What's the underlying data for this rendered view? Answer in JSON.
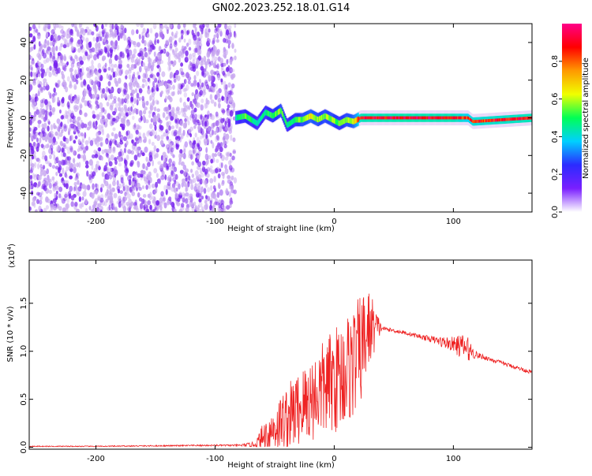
{
  "page": {
    "title": "GN02.2023.252.18.01.G14"
  },
  "colors": {
    "snr_line": "#ee2222",
    "ridge": "#ee1111",
    "noise_purple": "#7722ee",
    "noise_light": "#c8a8f0"
  },
  "chart_data": [
    {
      "type": "heatmap",
      "xlabel": "Height of straight line (km)",
      "ylabel": "Frequency (Hz)",
      "xlim": [
        -256,
        166
      ],
      "ylim": [
        -50,
        50
      ],
      "xticks": [
        -200,
        -100,
        0,
        100
      ],
      "yticks": [
        -40,
        -20,
        0,
        20,
        40
      ],
      "colorbar": {
        "label": "Normalized spectral amplitude",
        "range": [
          0.0,
          1.0
        ],
        "ticks": [
          "0.0",
          "0.2",
          "0.4",
          "0.6",
          "0.8"
        ],
        "tick_values": [
          0.0,
          0.2,
          0.4,
          0.6,
          0.8
        ],
        "colormap": [
          "#ffffff",
          "#7a1fff",
          "#2b2bff",
          "#00d0ff",
          "#00ff55",
          "#f0ff00",
          "#ff9900",
          "#ff0000",
          "#ff0088"
        ]
      },
      "noise_region_x": [
        -256,
        -83
      ],
      "ridge": {
        "x": [
          -83,
          -75,
          -65,
          -58,
          -52,
          -45,
          -40,
          -33,
          -27,
          -20,
          -14,
          -8,
          -2,
          4,
          10,
          16,
          22,
          60,
          100,
          112,
          116,
          166
        ],
        "freq": [
          0,
          1,
          -3,
          3,
          1,
          4,
          -4,
          -1,
          -1,
          1,
          -1,
          1,
          -1,
          -3,
          -1,
          -2,
          0,
          0,
          0,
          0,
          -2,
          0
        ],
        "amplitude": [
          0.45,
          0.55,
          0.45,
          0.5,
          0.55,
          0.6,
          0.5,
          0.55,
          0.6,
          0.65,
          0.6,
          0.6,
          0.6,
          0.55,
          0.6,
          0.65,
          0.95,
          0.97,
          0.95,
          0.85,
          0.9,
          0.95
        ]
      }
    },
    {
      "type": "line",
      "xlabel": "Height of straight line (km)",
      "ylabel": "SNR (10 * v/v)",
      "y_multiplier": "(x10",
      "y_multiplier_exp": "4",
      "y_multiplier_close": ")",
      "xlim": [
        -256,
        166
      ],
      "ylim": [
        -0.02,
        1.95
      ],
      "xticks": [
        -200,
        -100,
        0,
        100
      ],
      "yticks": [
        "0.0",
        "0.5",
        "1.0",
        "1.5"
      ],
      "ytick_values": [
        0.0,
        0.5,
        1.0,
        1.5
      ],
      "series": [
        {
          "x": [
            -256,
            -200,
            -150,
            -100,
            -80,
            -66,
            -60,
            -50,
            -40,
            -30,
            -20,
            -10,
            0,
            10,
            20,
            25,
            30,
            40,
            60,
            80,
            100,
            110,
            120,
            140,
            166
          ],
          "baseline": [
            0.01,
            0.01,
            0.015,
            0.02,
            0.02,
            0.03,
            0.1,
            0.2,
            0.3,
            0.4,
            0.5,
            0.6,
            0.7,
            0.8,
            0.95,
            1.1,
            1.25,
            1.24,
            1.19,
            1.13,
            1.07,
            1.04,
            0.96,
            0.88,
            0.78
          ],
          "amplitude": [
            0.005,
            0.005,
            0.006,
            0.008,
            0.01,
            0.03,
            0.15,
            0.25,
            0.35,
            0.4,
            0.45,
            0.5,
            0.55,
            0.6,
            0.6,
            0.55,
            0.4,
            0.02,
            0.02,
            0.03,
            0.08,
            0.15,
            0.03,
            0.02,
            0.02
          ]
        }
      ]
    }
  ]
}
